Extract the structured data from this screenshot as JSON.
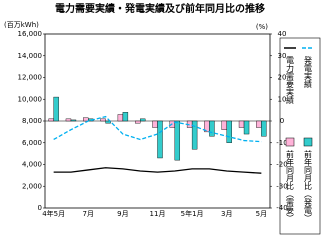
{
  "chart_data": {
    "type": "bar",
    "title": "電力需要実績・発電実績及び前年同月比の推移",
    "y_label": "(百万kWh)",
    "y2_label": "(%)",
    "categories": [
      "4年5月",
      null,
      "7月",
      null,
      "9月",
      null,
      "11月",
      null,
      "5年1月",
      null,
      "3月",
      null,
      "5月"
    ],
    "ylim": [
      0,
      16000
    ],
    "yticks": [
      0,
      {
        "value": 2000,
        "label": "2,000"
      },
      {
        "value": 4000,
        "label": "4,000"
      },
      {
        "value": 6000,
        "label": "6,000"
      },
      {
        "value": 8000,
        "label": "8,000"
      },
      {
        "value": 10000,
        "label": "10,000"
      },
      {
        "value": 12000,
        "label": "12,000"
      },
      {
        "value": 14000,
        "label": "14,000"
      },
      {
        "value": 16000,
        "label": "16,000"
      }
    ],
    "y2lim": [
      -40,
      40
    ],
    "y2ticks": [
      -40,
      -30,
      -20,
      -10,
      0,
      10,
      20,
      30,
      40
    ],
    "series": [
      {
        "name": "電力需要実績",
        "kind": "line",
        "color": "#000000",
        "values": [
          3300,
          3300,
          3500,
          3700,
          3600,
          3400,
          3300,
          3400,
          3600,
          3600,
          3400,
          3300,
          3200
        ]
      },
      {
        "name": "発電実績",
        "kind": "dashed-line",
        "color": "#00b0f0",
        "values": [
          6300,
          7200,
          8000,
          8400,
          6800,
          6300,
          6800,
          7900,
          7600,
          7000,
          6600,
          6200,
          6100
        ]
      },
      {
        "name": "前年同月比（需要）",
        "kind": "bar",
        "axis": "y2",
        "color": "#ffb3d9",
        "values": [
          1,
          1,
          1.5,
          1,
          3,
          -1,
          -3,
          -3,
          -3,
          -5,
          -4,
          -3,
          -3
        ]
      },
      {
        "name": "前年同月比（発電）",
        "kind": "bar",
        "axis": "y2",
        "color": "#33cccc",
        "values": [
          11,
          0.5,
          1,
          -1,
          4,
          1,
          -17,
          -18,
          -13,
          -7,
          -10,
          -6,
          -7
        ]
      }
    ]
  }
}
